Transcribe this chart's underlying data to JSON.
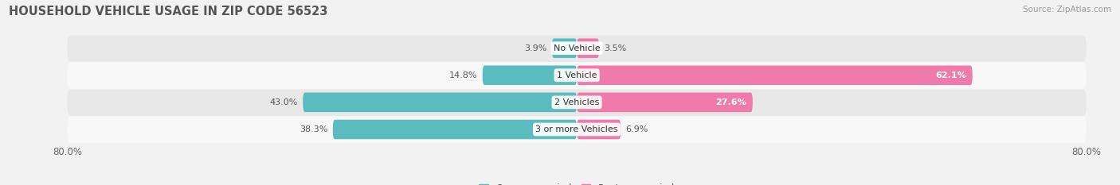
{
  "title": "HOUSEHOLD VEHICLE USAGE IN ZIP CODE 56523",
  "source": "Source: ZipAtlas.com",
  "categories": [
    "No Vehicle",
    "1 Vehicle",
    "2 Vehicles",
    "3 or more Vehicles"
  ],
  "owner_values": [
    3.9,
    14.8,
    43.0,
    38.3
  ],
  "renter_values": [
    3.5,
    62.1,
    27.6,
    6.9
  ],
  "owner_color": "#5bbcbf",
  "renter_color": "#f07aaa",
  "bar_height": 0.72,
  "xlim": [
    -80,
    80
  ],
  "xticklabels": [
    "80.0%",
    "80.0%"
  ],
  "title_fontsize": 10.5,
  "source_fontsize": 7.5,
  "label_fontsize": 8,
  "category_fontsize": 8,
  "legend_fontsize": 8.5,
  "background_color": "#f2f2f2",
  "row_color_odd": "#e8e8e8",
  "row_color_even": "#f8f8f8",
  "fig_width": 14.06,
  "fig_height": 2.33
}
